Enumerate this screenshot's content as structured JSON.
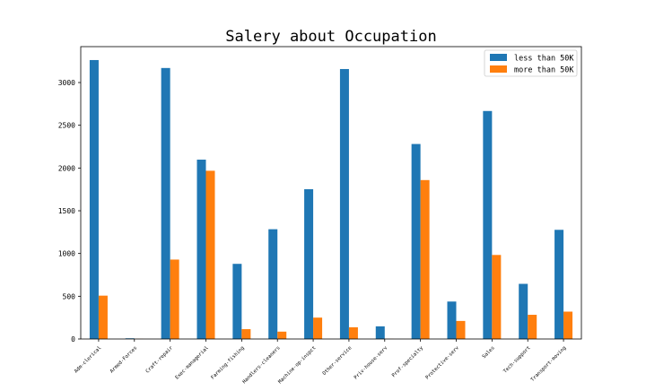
{
  "chart_data": {
    "type": "bar",
    "title": "Salery about Occupation",
    "xlabel": "",
    "ylabel": "",
    "ylim": [
      0,
      3420
    ],
    "yticks": [
      0,
      500,
      1000,
      1500,
      2000,
      2500,
      3000
    ],
    "grid": false,
    "legend_position": "top-right",
    "categories": [
      "Adm-clerical",
      "Armed-Forces",
      "Craft-repair",
      "Exec-managerial",
      "Farming-fishing",
      "Handlers-cleaners",
      "Machine-op-inspct",
      "Other-service",
      "Priv-house-serv",
      "Prof-specialty",
      "Protective-serv",
      "Sales",
      "Tech-support",
      "Transport-moving"
    ],
    "series": [
      {
        "name": "less than 50K",
        "color": "#1f77b4",
        "values": [
          3263,
          8,
          3170,
          2098,
          879,
          1284,
          1752,
          3158,
          148,
          2281,
          438,
          2667,
          645,
          1277
        ]
      },
      {
        "name": "more than 50K",
        "color": "#ff7f0e",
        "values": [
          507,
          1,
          929,
          1968,
          115,
          86,
          250,
          137,
          1,
          1859,
          211,
          983,
          283,
          320
        ]
      }
    ]
  }
}
